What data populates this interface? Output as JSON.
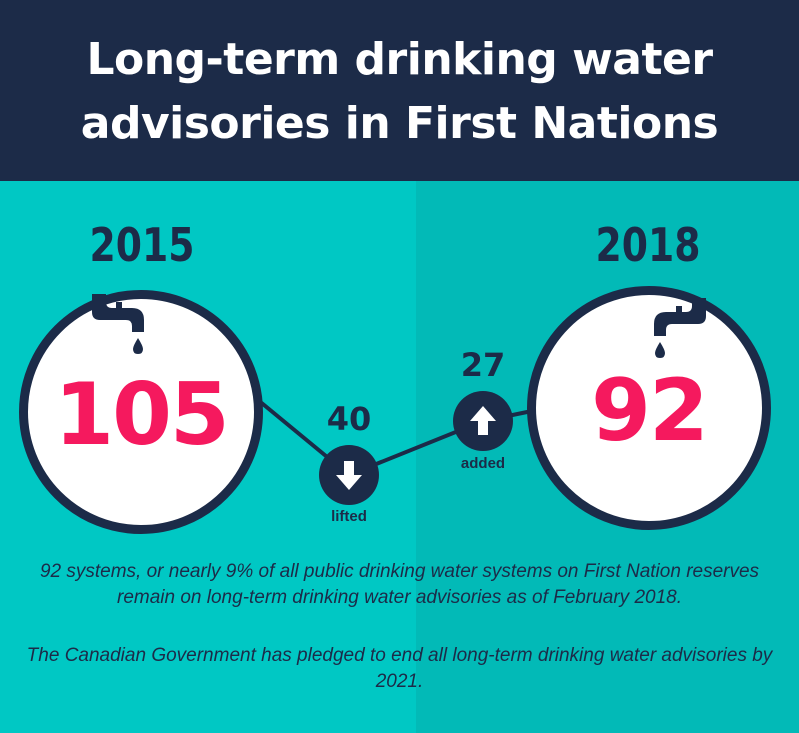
{
  "header": {
    "title_line_1": "Long-term drinking water",
    "title_line_2": "advisories in First Nations"
  },
  "left": {
    "year": "2015",
    "count": "105",
    "icon": "water-tap-icon"
  },
  "right": {
    "year": "2018",
    "count": "92",
    "icon": "water-tap-icon"
  },
  "changes": {
    "lifted": {
      "value": "40",
      "label": "lifted",
      "icon": "arrow-down-icon"
    },
    "added": {
      "value": "27",
      "label": "added",
      "icon": "arrow-up-icon"
    }
  },
  "body": {
    "paragraph_1": "92 systems, or nearly 9% of all public drinking water systems on First Nation reserves remain on long-term drinking water advisories as of February 2018.",
    "paragraph_2": "The Canadian Government has pledged to end all long-term drinking water advisories by 2021."
  },
  "colors": {
    "navy": "#1c2b48",
    "teal_left": "#00c8c4",
    "teal_right": "#02bab7",
    "accent_pink": "#f5195e",
    "white": "#ffffff"
  }
}
